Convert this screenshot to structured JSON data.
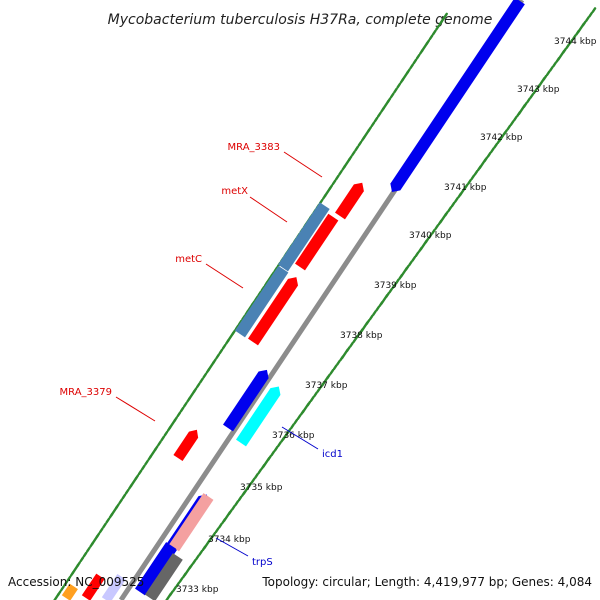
{
  "title": "Mycobacterium tuberculosis H37Ra, complete genome",
  "footer": {
    "accession": "Accession: NC_009525",
    "summary": "Topology: circular; Length: 4,419,977 bp; Genes: 4,084"
  },
  "colors": {
    "backbone": "#8c8c8c",
    "tick_dots": "#2e8b2e",
    "forward_label": "#dd0000",
    "reverse_label": "#0000cc",
    "cds_blue": "#0000ee",
    "cds_red": "#ff0000",
    "cds_steel": "#4a82b4",
    "cds_cyan": "#00ffff",
    "cds_pink": "#f4a0a0",
    "cds_gray": "#666666",
    "cds_orange": "#ffa020",
    "cds_lavender": "#c8c8ff"
  },
  "ticks": [
    {
      "label": "3733 kbp"
    },
    {
      "label": "3734 kbp"
    },
    {
      "label": "3735 kbp"
    },
    {
      "label": "3736 kbp"
    },
    {
      "label": "3737 kbp"
    },
    {
      "label": "3738 kbp"
    },
    {
      "label": "3739 kbp"
    },
    {
      "label": "3740 kbp"
    },
    {
      "label": "3741 kbp"
    },
    {
      "label": "3742 kbp"
    },
    {
      "label": "3743 kbp"
    },
    {
      "label": "3744 kbp"
    }
  ],
  "gene_labels": [
    {
      "name": "MRA_3383",
      "strand": "forward"
    },
    {
      "name": "metX",
      "strand": "forward"
    },
    {
      "name": "metC",
      "strand": "forward"
    },
    {
      "name": "MRA_3379",
      "strand": "forward"
    },
    {
      "name": "icd1",
      "strand": "reverse"
    },
    {
      "name": "trpS",
      "strand": "reverse"
    }
  ]
}
